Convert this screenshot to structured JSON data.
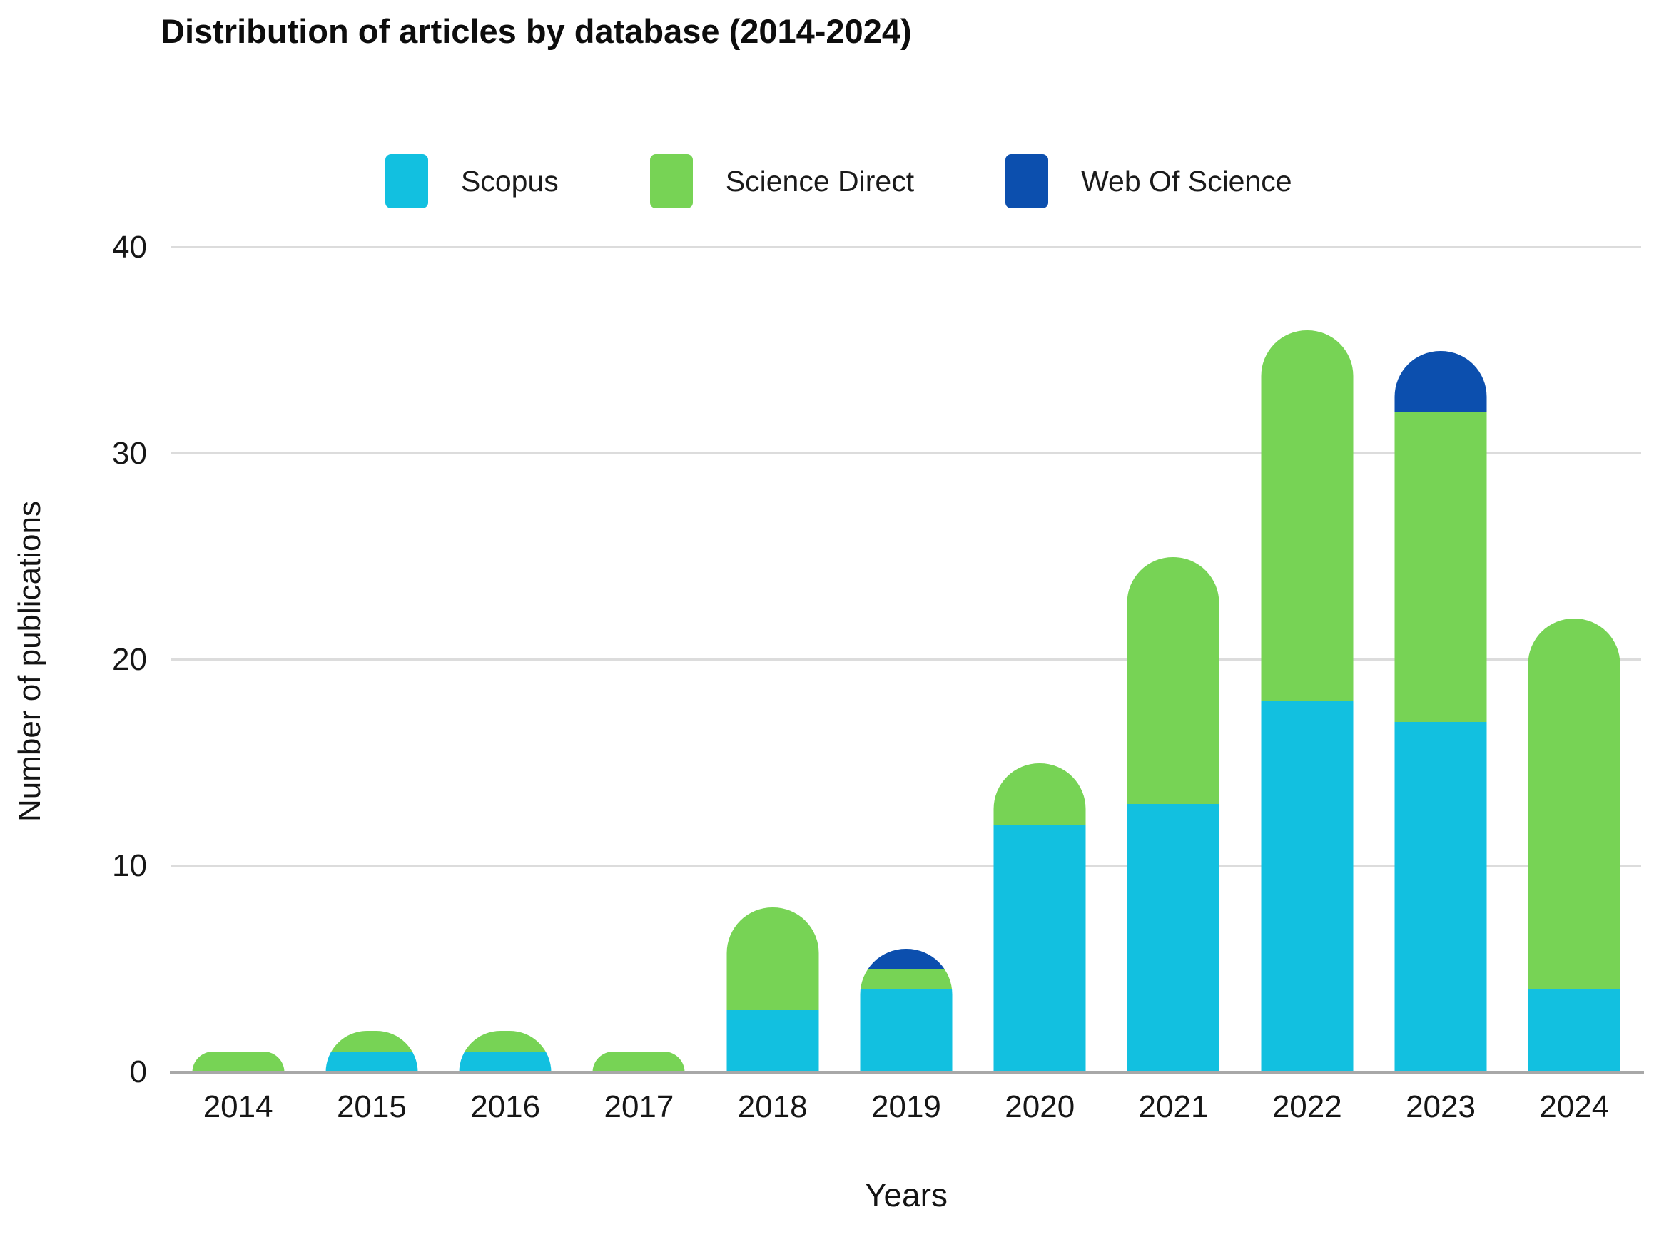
{
  "chart_data": {
    "type": "bar",
    "stacked": true,
    "title": "Distribution of articles by database (2014-2024)",
    "xlabel": "Years",
    "ylabel": "Number of publications",
    "categories": [
      "2014",
      "2015",
      "2016",
      "2017",
      "2018",
      "2019",
      "2020",
      "2021",
      "2022",
      "2023",
      "2024"
    ],
    "series": [
      {
        "name": "Scopus",
        "color": "#12c0e0",
        "values": [
          0,
          1,
          1,
          0,
          3,
          4,
          12,
          13,
          18,
          17,
          4
        ]
      },
      {
        "name": "Science Direct",
        "color": "#77d355",
        "values": [
          1,
          1,
          1,
          1,
          5,
          1,
          3,
          12,
          18,
          15,
          18
        ]
      },
      {
        "name": "Web Of Science",
        "color": "#0c4fae",
        "values": [
          0,
          0,
          0,
          0,
          0,
          1,
          0,
          0,
          0,
          3,
          0
        ]
      }
    ],
    "ylim": [
      0,
      40
    ],
    "yticks": [
      0,
      10,
      20,
      30,
      40
    ],
    "grid": true,
    "legend_position": "top"
  },
  "colors": {
    "gridline": "#dcdcdc",
    "axis_line": "#a8a8a8",
    "text": "#161616"
  }
}
